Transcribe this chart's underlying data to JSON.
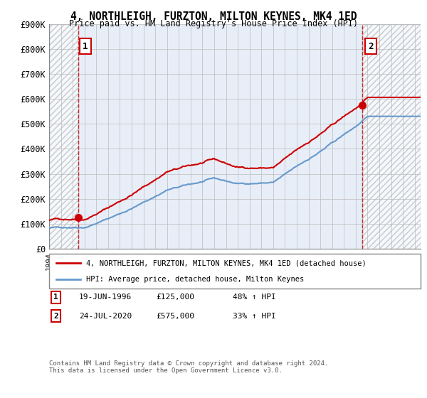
{
  "title": "4, NORTHLEIGH, FURZTON, MILTON KEYNES, MK4 1ED",
  "subtitle": "Price paid vs. HM Land Registry's House Price Index (HPI)",
  "ylim": [
    0,
    900000
  ],
  "yticks": [
    0,
    100000,
    200000,
    300000,
    400000,
    500000,
    600000,
    700000,
    800000,
    900000
  ],
  "ytick_labels": [
    "£0",
    "£100K",
    "£200K",
    "£300K",
    "£400K",
    "£500K",
    "£600K",
    "£700K",
    "£800K",
    "£900K"
  ],
  "sale1_date_num": 1996.47,
  "sale1_price": 125000,
  "sale1_label": "1",
  "sale2_date_num": 2020.56,
  "sale2_price": 575000,
  "sale2_label": "2",
  "line_color_red": "#cc0000",
  "line_color_blue": "#6699cc",
  "grid_color": "#bbbbbb",
  "legend_line1": "4, NORTHLEIGH, FURZTON, MILTON KEYNES, MK4 1ED (detached house)",
  "legend_line2": "HPI: Average price, detached house, Milton Keynes",
  "ann1_date": "19-JUN-1996",
  "ann1_price": "£125,000",
  "ann1_pct": "48% ↑ HPI",
  "ann2_date": "24-JUL-2020",
  "ann2_price": "£575,000",
  "ann2_pct": "33% ↑ HPI",
  "footer": "Contains HM Land Registry data © Crown copyright and database right 2024.\nThis data is licensed under the Open Government Licence v3.0.",
  "xmin": 1994,
  "xmax": 2025.5
}
